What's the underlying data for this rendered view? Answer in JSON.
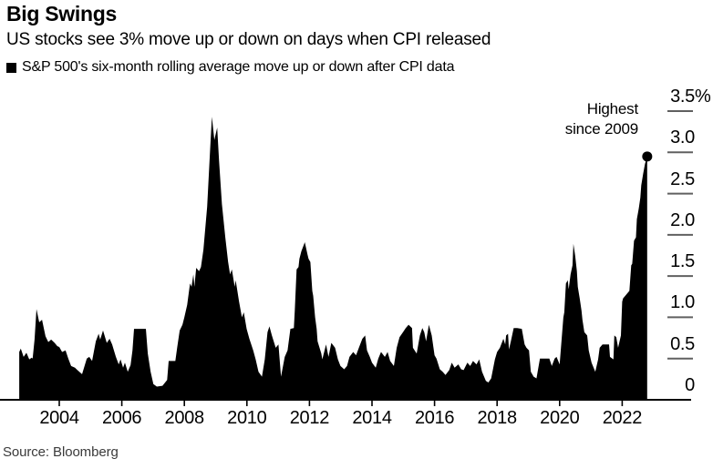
{
  "header": {
    "title": "Big Swings",
    "subtitle": "US stocks see 3% move up or down on days when CPI released",
    "legend_label": "S&P 500's six-month rolling average move up or down after CPI data"
  },
  "source": "Source: Bloomberg",
  "chart_data": {
    "type": "area",
    "title": "Big Swings",
    "subtitle": "US stocks see 3% move up or down on days when CPI released",
    "series_name": "S&P 500's six-month rolling average move up or down after CPI data",
    "unit": "%",
    "grid": false,
    "legend_position": "top-left",
    "x_axis": {
      "range": [
        2002.72,
        2022.83
      ],
      "ticks": [
        2004,
        2006,
        2008,
        2010,
        2012,
        2014,
        2016,
        2018,
        2020,
        2022
      ]
    },
    "y_axis": {
      "range": [
        0,
        3.5
      ],
      "side": "right",
      "ticks": [
        {
          "value": 3.5,
          "label": "3.5%"
        },
        {
          "value": 3.0,
          "label": "3.0"
        },
        {
          "value": 2.5,
          "label": "2.5"
        },
        {
          "value": 2.0,
          "label": "2.0"
        },
        {
          "value": 1.5,
          "label": "1.5"
        },
        {
          "value": 1.0,
          "label": "1.0"
        },
        {
          "value": 0.5,
          "label": "0.5"
        },
        {
          "value": 0,
          "label": "0"
        }
      ]
    },
    "annotation": {
      "lines": [
        "Highest",
        "since 2009"
      ],
      "marker": {
        "year": 2022.8,
        "value": 2.95
      }
    },
    "colors": {
      "area": "#000000",
      "baseline": "#000000",
      "tick_dash": "#606060",
      "background": "#ffffff",
      "source_text": "#3a3a3a"
    },
    "points": [
      [
        2002.72,
        0.58
      ],
      [
        2002.77,
        0.62
      ],
      [
        2002.86,
        0.52
      ],
      [
        2002.95,
        0.57
      ],
      [
        2003.04,
        0.49
      ],
      [
        2003.12,
        0.51
      ],
      [
        2003.15,
        0.5
      ],
      [
        2003.21,
        0.73
      ],
      [
        2003.27,
        1.1
      ],
      [
        2003.36,
        0.94
      ],
      [
        2003.45,
        0.97
      ],
      [
        2003.56,
        0.77
      ],
      [
        2003.65,
        0.7
      ],
      [
        2003.74,
        0.73
      ],
      [
        2003.85,
        0.69
      ],
      [
        2003.94,
        0.65
      ],
      [
        2004.0,
        0.64
      ],
      [
        2004.09,
        0.58
      ],
      [
        2004.2,
        0.6
      ],
      [
        2004.29,
        0.5
      ],
      [
        2004.38,
        0.41
      ],
      [
        2004.5,
        0.39
      ],
      [
        2004.58,
        0.36
      ],
      [
        2004.73,
        0.31
      ],
      [
        2004.88,
        0.5
      ],
      [
        2004.96,
        0.52
      ],
      [
        2005.05,
        0.47
      ],
      [
        2005.17,
        0.71
      ],
      [
        2005.26,
        0.8
      ],
      [
        2005.31,
        0.73
      ],
      [
        2005.4,
        0.84
      ],
      [
        2005.52,
        0.69
      ],
      [
        2005.61,
        0.74
      ],
      [
        2005.69,
        0.67
      ],
      [
        2005.81,
        0.52
      ],
      [
        2005.9,
        0.43
      ],
      [
        2005.96,
        0.49
      ],
      [
        2006.04,
        0.39
      ],
      [
        2006.1,
        0.45
      ],
      [
        2006.19,
        0.34
      ],
      [
        2006.28,
        0.42
      ],
      [
        2006.34,
        0.6
      ],
      [
        2006.39,
        0.86
      ],
      [
        2006.63,
        0.86
      ],
      [
        2006.77,
        0.86
      ],
      [
        2006.83,
        0.56
      ],
      [
        2006.92,
        0.34
      ],
      [
        2007.01,
        0.19
      ],
      [
        2007.12,
        0.16
      ],
      [
        2007.3,
        0.17
      ],
      [
        2007.45,
        0.24
      ],
      [
        2007.5,
        0.47
      ],
      [
        2007.71,
        0.47
      ],
      [
        2007.77,
        0.63
      ],
      [
        2007.85,
        0.84
      ],
      [
        2007.94,
        0.91
      ],
      [
        2008.0,
        1.0
      ],
      [
        2008.09,
        1.15
      ],
      [
        2008.18,
        1.41
      ],
      [
        2008.23,
        1.37
      ],
      [
        2008.29,
        1.52
      ],
      [
        2008.32,
        1.37
      ],
      [
        2008.38,
        1.6
      ],
      [
        2008.47,
        1.56
      ],
      [
        2008.53,
        1.61
      ],
      [
        2008.61,
        1.82
      ],
      [
        2008.73,
        2.34
      ],
      [
        2008.82,
        3.0
      ],
      [
        2008.88,
        3.43
      ],
      [
        2008.96,
        3.15
      ],
      [
        2009.05,
        3.3
      ],
      [
        2009.11,
        2.89
      ],
      [
        2009.2,
        2.37
      ],
      [
        2009.31,
        1.97
      ],
      [
        2009.4,
        1.67
      ],
      [
        2009.46,
        1.52
      ],
      [
        2009.52,
        1.58
      ],
      [
        2009.61,
        1.37
      ],
      [
        2009.64,
        1.45
      ],
      [
        2009.75,
        1.19
      ],
      [
        2009.84,
        1.0
      ],
      [
        2009.9,
        1.06
      ],
      [
        2009.99,
        0.86
      ],
      [
        2010.08,
        0.74
      ],
      [
        2010.2,
        0.6
      ],
      [
        2010.28,
        0.49
      ],
      [
        2010.37,
        0.34
      ],
      [
        2010.48,
        0.28
      ],
      [
        2010.57,
        0.49
      ],
      [
        2010.66,
        0.82
      ],
      [
        2010.72,
        0.89
      ],
      [
        2010.8,
        0.78
      ],
      [
        2010.92,
        0.63
      ],
      [
        2011.01,
        0.67
      ],
      [
        2011.09,
        0.28
      ],
      [
        2011.21,
        0.52
      ],
      [
        2011.3,
        0.6
      ],
      [
        2011.39,
        0.86
      ],
      [
        2011.5,
        0.87
      ],
      [
        2011.53,
        1.08
      ],
      [
        2011.59,
        1.58
      ],
      [
        2011.65,
        1.61
      ],
      [
        2011.68,
        1.71
      ],
      [
        2011.74,
        1.8
      ],
      [
        2011.85,
        1.91
      ],
      [
        2011.94,
        1.76
      ],
      [
        2011.97,
        1.71
      ],
      [
        2012.03,
        1.67
      ],
      [
        2012.09,
        1.32
      ],
      [
        2012.12,
        1.26
      ],
      [
        2012.18,
        1.0
      ],
      [
        2012.23,
        0.86
      ],
      [
        2012.26,
        0.71
      ],
      [
        2012.38,
        0.56
      ],
      [
        2012.41,
        0.49
      ],
      [
        2012.53,
        0.67
      ],
      [
        2012.61,
        0.52
      ],
      [
        2012.7,
        0.69
      ],
      [
        2012.82,
        0.63
      ],
      [
        2012.91,
        0.49
      ],
      [
        2012.99,
        0.41
      ],
      [
        2013.11,
        0.37
      ],
      [
        2013.2,
        0.41
      ],
      [
        2013.28,
        0.52
      ],
      [
        2013.4,
        0.58
      ],
      [
        2013.49,
        0.54
      ],
      [
        2013.58,
        0.63
      ],
      [
        2013.69,
        0.74
      ],
      [
        2013.78,
        0.78
      ],
      [
        2013.84,
        0.6
      ],
      [
        2013.93,
        0.52
      ],
      [
        2014.0,
        0.45
      ],
      [
        2014.12,
        0.39
      ],
      [
        2014.2,
        0.5
      ],
      [
        2014.29,
        0.58
      ],
      [
        2014.41,
        0.52
      ],
      [
        2014.5,
        0.58
      ],
      [
        2014.58,
        0.47
      ],
      [
        2014.7,
        0.41
      ],
      [
        2014.79,
        0.63
      ],
      [
        2014.88,
        0.76
      ],
      [
        2014.99,
        0.82
      ],
      [
        2015.08,
        0.87
      ],
      [
        2015.17,
        0.91
      ],
      [
        2015.28,
        0.87
      ],
      [
        2015.31,
        0.63
      ],
      [
        2015.43,
        0.56
      ],
      [
        2015.53,
        0.78
      ],
      [
        2015.61,
        0.87
      ],
      [
        2015.67,
        0.82
      ],
      [
        2015.73,
        0.71
      ],
      [
        2015.82,
        0.91
      ],
      [
        2015.91,
        0.78
      ],
      [
        2016.0,
        0.54
      ],
      [
        2016.06,
        0.5
      ],
      [
        2016.17,
        0.37
      ],
      [
        2016.26,
        0.34
      ],
      [
        2016.35,
        0.3
      ],
      [
        2016.47,
        0.36
      ],
      [
        2016.55,
        0.45
      ],
      [
        2016.64,
        0.39
      ],
      [
        2016.76,
        0.43
      ],
      [
        2016.85,
        0.37
      ],
      [
        2016.93,
        0.36
      ],
      [
        2017.05,
        0.45
      ],
      [
        2017.14,
        0.41
      ],
      [
        2017.23,
        0.47
      ],
      [
        2017.34,
        0.43
      ],
      [
        2017.43,
        0.49
      ],
      [
        2017.52,
        0.34
      ],
      [
        2017.64,
        0.23
      ],
      [
        2017.72,
        0.21
      ],
      [
        2017.81,
        0.26
      ],
      [
        2017.93,
        0.49
      ],
      [
        2018.0,
        0.58
      ],
      [
        2018.09,
        0.63
      ],
      [
        2018.2,
        0.74
      ],
      [
        2018.26,
        0.67
      ],
      [
        2018.29,
        0.78
      ],
      [
        2018.35,
        0.8
      ],
      [
        2018.38,
        0.61
      ],
      [
        2018.44,
        0.71
      ],
      [
        2018.53,
        0.87
      ],
      [
        2018.64,
        0.87
      ],
      [
        2018.79,
        0.86
      ],
      [
        2018.88,
        0.67
      ],
      [
        2018.94,
        0.63
      ],
      [
        2019.02,
        0.6
      ],
      [
        2019.08,
        0.34
      ],
      [
        2019.17,
        0.28
      ],
      [
        2019.26,
        0.26
      ],
      [
        2019.37,
        0.5
      ],
      [
        2019.67,
        0.5
      ],
      [
        2019.75,
        0.41
      ],
      [
        2019.84,
        0.5
      ],
      [
        2019.9,
        0.52
      ],
      [
        2020.0,
        0.43
      ],
      [
        2020.12,
        1.0
      ],
      [
        2020.15,
        1.06
      ],
      [
        2020.2,
        1.41
      ],
      [
        2020.26,
        1.45
      ],
      [
        2020.29,
        1.34
      ],
      [
        2020.35,
        1.52
      ],
      [
        2020.41,
        1.63
      ],
      [
        2020.44,
        1.89
      ],
      [
        2020.5,
        1.74
      ],
      [
        2020.55,
        1.56
      ],
      [
        2020.58,
        1.37
      ],
      [
        2020.64,
        1.23
      ],
      [
        2020.7,
        1.08
      ],
      [
        2020.73,
        0.97
      ],
      [
        2020.79,
        0.82
      ],
      [
        2020.88,
        0.78
      ],
      [
        2020.93,
        0.6
      ],
      [
        2021.02,
        0.45
      ],
      [
        2021.14,
        0.34
      ],
      [
        2021.23,
        0.49
      ],
      [
        2021.28,
        0.63
      ],
      [
        2021.37,
        0.67
      ],
      [
        2021.58,
        0.67
      ],
      [
        2021.61,
        0.52
      ],
      [
        2021.72,
        0.49
      ],
      [
        2021.75,
        0.78
      ],
      [
        2021.81,
        0.76
      ],
      [
        2021.87,
        0.63
      ],
      [
        2021.96,
        0.78
      ],
      [
        2022.0,
        1.19
      ],
      [
        2022.03,
        1.23
      ],
      [
        2022.23,
        1.32
      ],
      [
        2022.29,
        1.63
      ],
      [
        2022.32,
        1.65
      ],
      [
        2022.38,
        1.93
      ],
      [
        2022.44,
        1.97
      ],
      [
        2022.47,
        2.19
      ],
      [
        2022.53,
        2.32
      ],
      [
        2022.58,
        2.45
      ],
      [
        2022.61,
        2.6
      ],
      [
        2022.67,
        2.74
      ],
      [
        2022.73,
        2.86
      ],
      [
        2022.8,
        2.95
      ]
    ]
  }
}
